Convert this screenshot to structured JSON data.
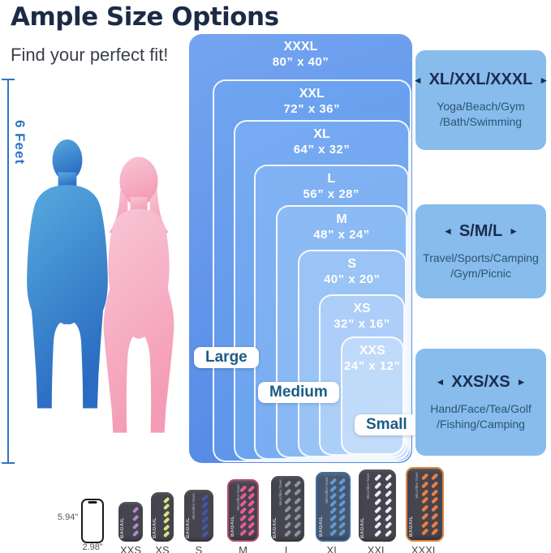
{
  "header": {
    "title": "Ample Size Options",
    "subtitle": "Find your perfect fit!"
  },
  "figure": {
    "height_label": "6 Feet"
  },
  "size_stack": {
    "sizes": [
      {
        "name": "XXXL",
        "dims": "80”  x 40”"
      },
      {
        "name": "XXL",
        "dims": "72”  x 36”"
      },
      {
        "name": "XL",
        "dims": "64”  x 32”"
      },
      {
        "name": "L",
        "dims": "56”  x 28”"
      },
      {
        "name": "M",
        "dims": "48”  x 24”"
      },
      {
        "name": "S",
        "dims": "40”  x 20”"
      },
      {
        "name": "XS",
        "dims": "32”  x 16”"
      },
      {
        "name": "XXS",
        "dims": "24”  x 12”"
      }
    ],
    "tags": [
      {
        "label": "Large"
      },
      {
        "label": "Medium"
      },
      {
        "label": "Small"
      }
    ]
  },
  "use_boxes": [
    {
      "arrow_left": "◄",
      "heading": "XL/XXL/XXXL",
      "arrow_right": "►",
      "line1": "Yoga/Beach/Gym",
      "line2": "/Bath/Swimming"
    },
    {
      "arrow_left": "◄",
      "heading": "S/M/L",
      "arrow_right": "►",
      "line1": "Travel/Sports/Camping",
      "line2": "/Gym/Picnic"
    },
    {
      "arrow_left": "◄",
      "heading": "XXS/XS",
      "arrow_right": "►",
      "line1": "Hand/Face/Tea/Golf",
      "line2": "/Fishing/Camping"
    }
  ],
  "bottom_row": {
    "phone": {
      "height_label": "5.94”",
      "width_label": "2.98”"
    },
    "brand": "BAGAIL",
    "brand_sub": "Microfiber Towel",
    "towels": [
      {
        "label": "XXS",
        "stripe_color": "#b286c9"
      },
      {
        "label": "XS",
        "stripe_color": "#dfe27e"
      },
      {
        "label": "S",
        "stripe_color": "#4156ae"
      },
      {
        "label": "M",
        "stripe_color": "#ea5b92",
        "trim_color": "#b34a68"
      },
      {
        "label": "L",
        "stripe_color": "#8f939e"
      },
      {
        "label": "XL",
        "stripe_color": "#5e9ad6",
        "trim_color": "#3c6ea8",
        "body_color": "#47586e"
      },
      {
        "label": "XXL",
        "stripe_color": "#ececf0"
      },
      {
        "label": "XXXL",
        "stripe_color": "#ec8040",
        "trim_color": "#e0863f"
      }
    ]
  },
  "colors": {
    "title": "#1b2b45",
    "subtitle": "#3a3f48",
    "accent_blue": "#2f74c4",
    "use_box_bg": "#87bced",
    "use_box_heading": "#1b2c4e",
    "use_box_text": "#2e5470",
    "tag_text": "#1d5c86",
    "towel_body": "#45454f",
    "label_gray": "#4a4a4a",
    "man_gradient": [
      "#58aade",
      "#2a6cc2"
    ],
    "woman_gradient": [
      "#f8c6d6",
      "#f49cb6"
    ]
  }
}
